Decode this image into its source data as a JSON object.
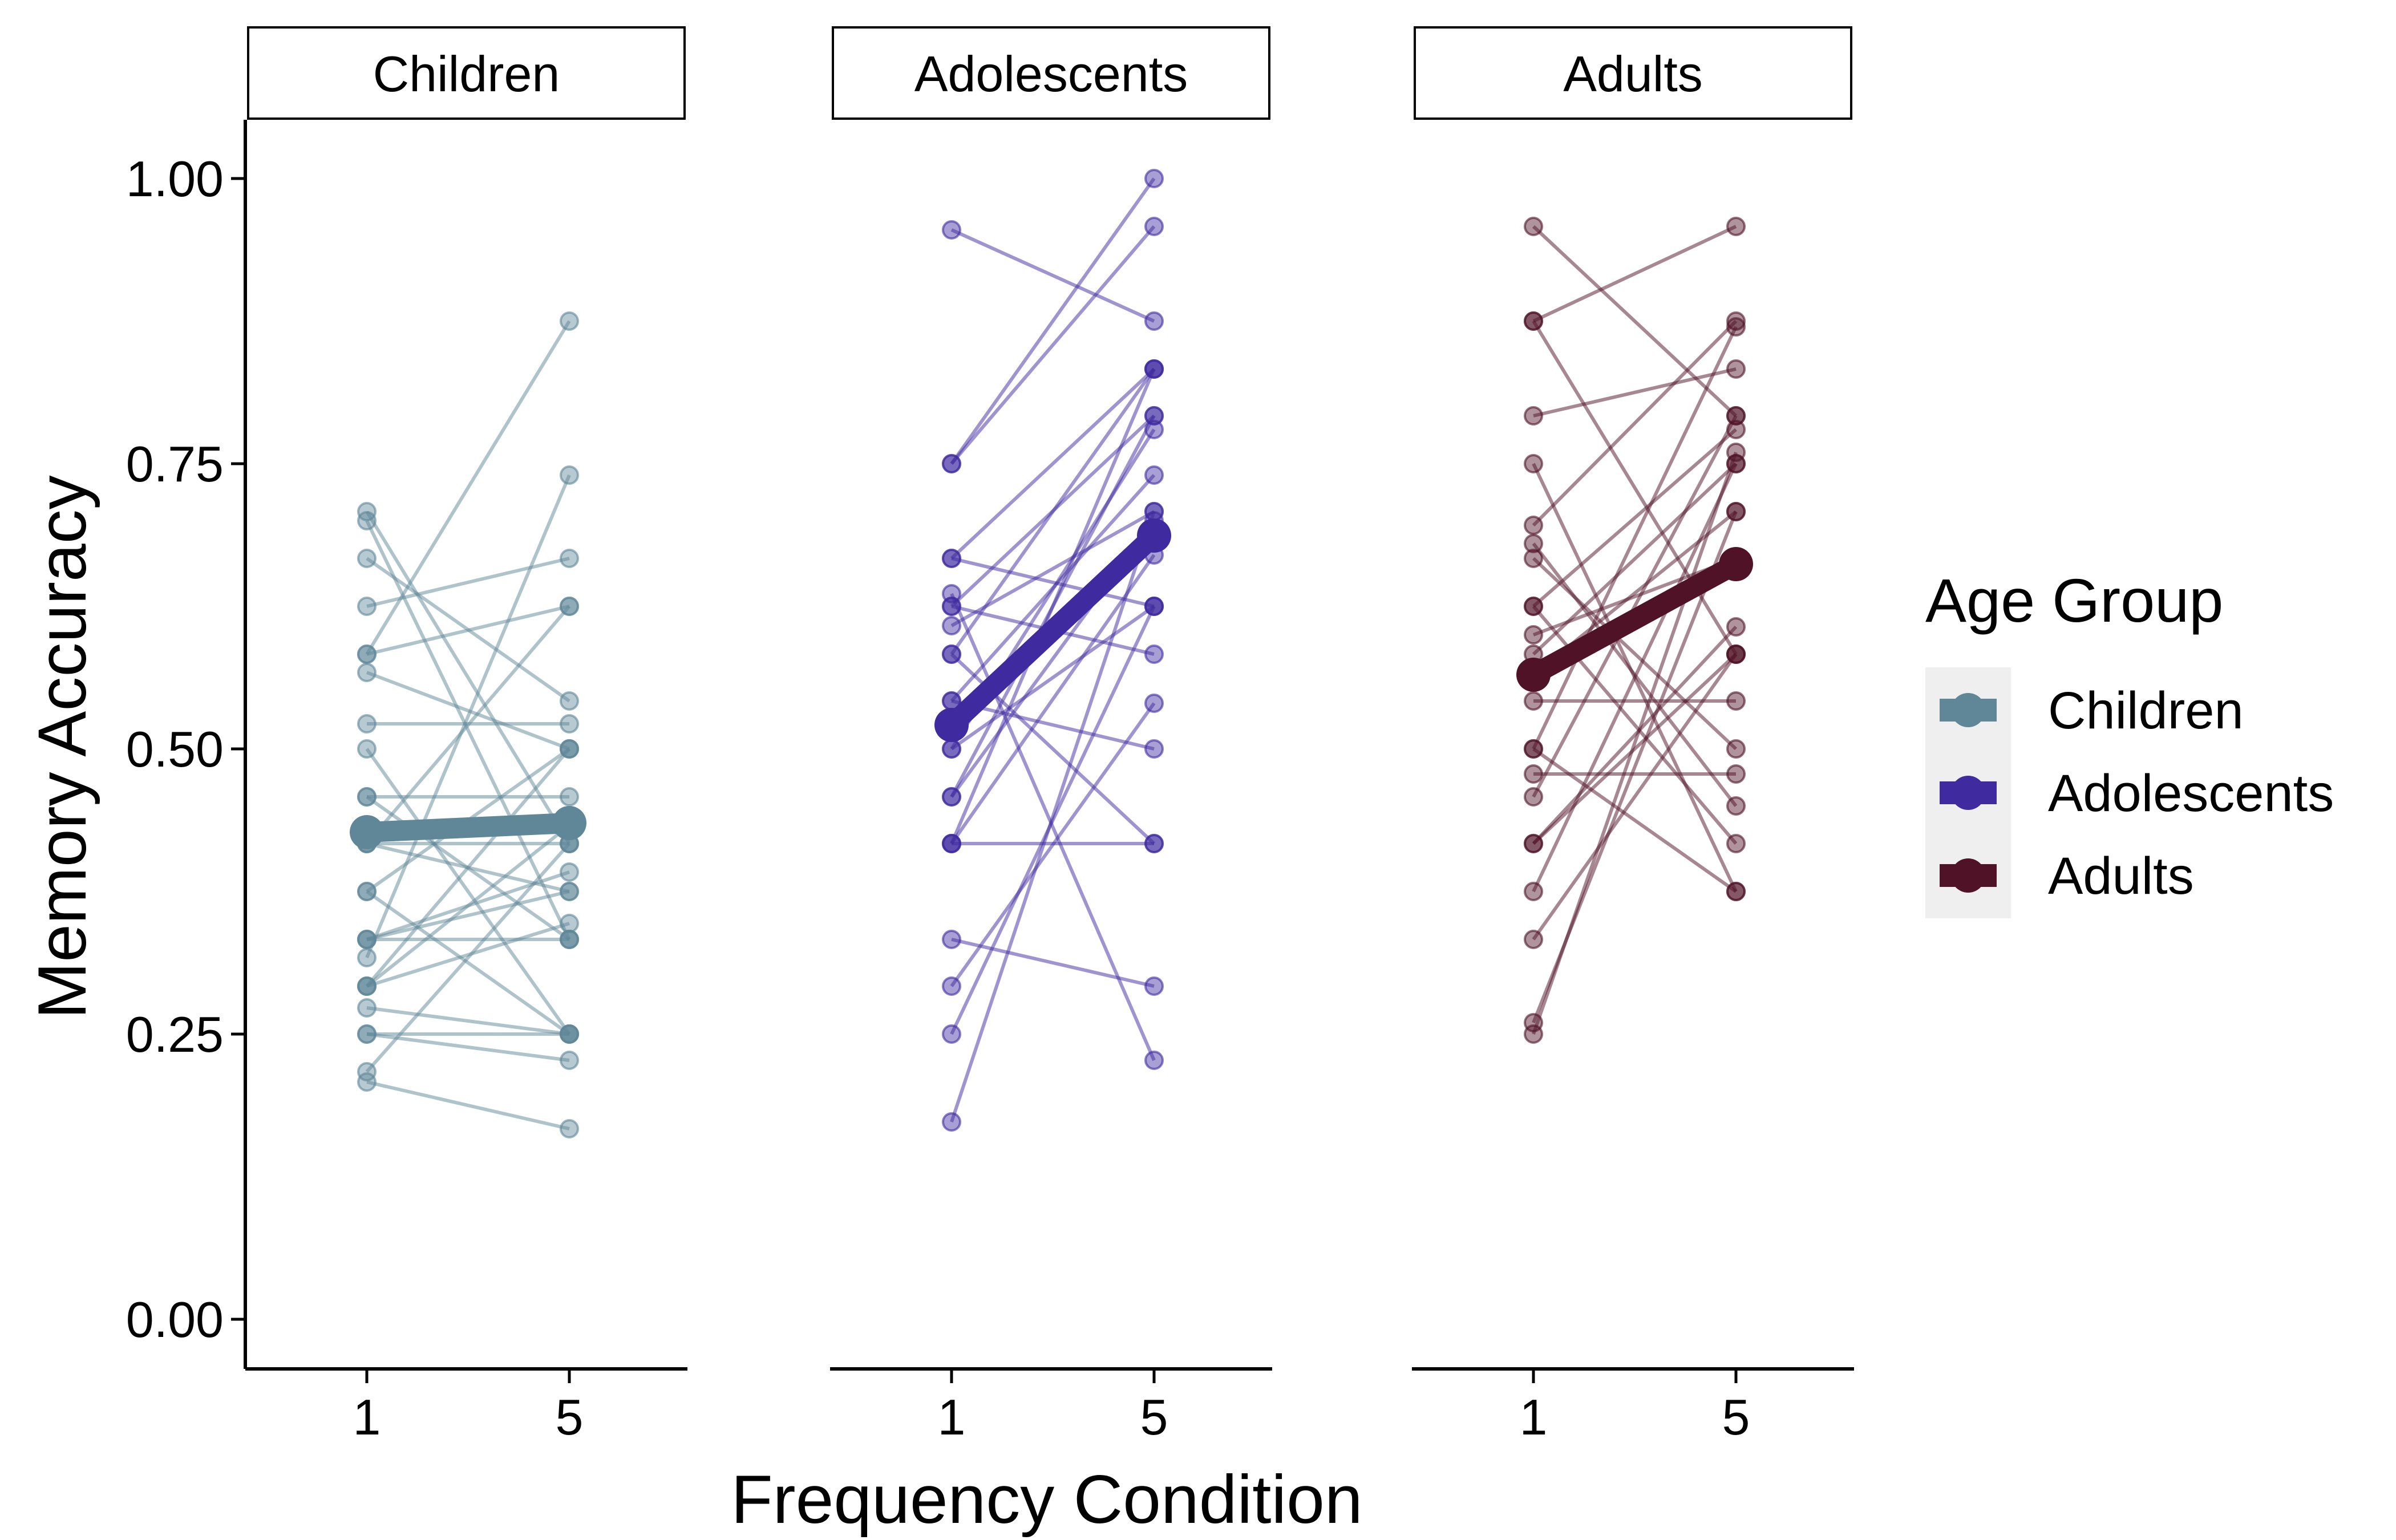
{
  "chart_data": {
    "type": "line",
    "xlabel": "Frequency Condition",
    "ylabel": "Memory Accuracy",
    "ylim": [
      0,
      1.05
    ],
    "yticks": [
      0,
      0.25,
      0.5,
      0.75,
      1
    ],
    "ytick_labels": [
      "0.00",
      "0.25",
      "0.50",
      "0.75",
      "1.00"
    ],
    "x_categories": [
      "1",
      "5"
    ],
    "grid": false,
    "legend": {
      "title": "Age Group",
      "position": "right",
      "items": [
        {
          "label": "Children",
          "color": "#5f8798"
        },
        {
          "label": "Adolescents",
          "color": "#3f2aa0"
        },
        {
          "label": "Adults",
          "color": "#4f1226"
        }
      ]
    },
    "panels": [
      {
        "label": "Children",
        "color": "#5f8798",
        "mean": [
          0.427,
          0.435
        ],
        "pairs": [
          [
            0.708,
            0.417
          ],
          [
            0.7,
            0.333
          ],
          [
            0.667,
            0.542
          ],
          [
            0.625,
            0.667
          ],
          [
            0.583,
            0.875
          ],
          [
            0.583,
            0.625
          ],
          [
            0.567,
            0.5
          ],
          [
            0.522,
            0.522
          ],
          [
            0.5,
            0.25
          ],
          [
            0.458,
            0.458
          ],
          [
            0.458,
            0.333
          ],
          [
            0.417,
            0.417
          ],
          [
            0.417,
            0.375
          ],
          [
            0.375,
            0.25
          ],
          [
            0.375,
            0.5
          ],
          [
            0.333,
            0.333
          ],
          [
            0.333,
            0.392
          ],
          [
            0.292,
            0.5
          ],
          [
            0.292,
            0.347
          ],
          [
            0.292,
            0.433
          ],
          [
            0.317,
            0.74
          ],
          [
            0.273,
            0.25
          ],
          [
            0.25,
            0.25
          ],
          [
            0.25,
            0.227
          ],
          [
            0.217,
            0.417
          ],
          [
            0.208,
            0.167
          ],
          [
            0.417,
            0.625
          ],
          [
            0.333,
            0.375
          ]
        ]
      },
      {
        "label": "Adolescents",
        "color": "#3f2aa0",
        "mean": [
          0.521,
          0.687
        ],
        "pairs": [
          [
            0.955,
            0.875
          ],
          [
            0.75,
            1.0
          ],
          [
            0.75,
            0.958
          ],
          [
            0.667,
            0.625
          ],
          [
            0.667,
            0.833
          ],
          [
            0.625,
            0.792
          ],
          [
            0.625,
            0.583
          ],
          [
            0.608,
            0.708
          ],
          [
            0.583,
            0.833
          ],
          [
            0.542,
            0.74
          ],
          [
            0.542,
            0.5
          ],
          [
            0.5,
            0.78
          ],
          [
            0.5,
            0.625
          ],
          [
            0.458,
            0.792
          ],
          [
            0.417,
            0.417
          ],
          [
            0.417,
            0.67
          ],
          [
            0.417,
            0.833
          ],
          [
            0.333,
            0.292
          ],
          [
            0.292,
            0.54
          ],
          [
            0.25,
            0.625
          ],
          [
            0.173,
            0.708
          ],
          [
            0.636,
            0.227
          ],
          [
            0.583,
            0.417
          ],
          [
            0.458,
            0.7
          ]
        ]
      },
      {
        "label": "Adults",
        "color": "#4f1226",
        "mean": [
          0.565,
          0.662
        ],
        "pairs": [
          [
            0.958,
            0.792
          ],
          [
            0.875,
            0.958
          ],
          [
            0.875,
            0.583
          ],
          [
            0.792,
            0.833
          ],
          [
            0.75,
            0.375
          ],
          [
            0.696,
            0.875
          ],
          [
            0.667,
            0.5
          ],
          [
            0.625,
            0.78
          ],
          [
            0.625,
            0.417
          ],
          [
            0.583,
            0.75
          ],
          [
            0.565,
            0.708
          ],
          [
            0.542,
            0.542
          ],
          [
            0.5,
            0.87
          ],
          [
            0.5,
            0.375
          ],
          [
            0.478,
            0.478
          ],
          [
            0.458,
            0.792
          ],
          [
            0.417,
            0.583
          ],
          [
            0.417,
            0.607
          ],
          [
            0.375,
            0.75
          ],
          [
            0.333,
            0.583
          ],
          [
            0.26,
            0.708
          ],
          [
            0.25,
            0.76
          ],
          [
            0.68,
            0.45
          ],
          [
            0.6,
            0.667
          ]
        ]
      }
    ]
  }
}
